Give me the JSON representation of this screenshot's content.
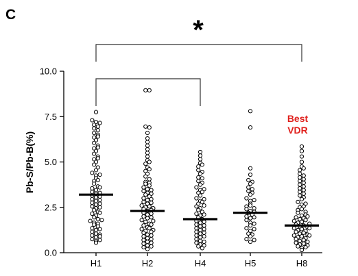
{
  "panel_label": "C",
  "significance": "*",
  "annotation": {
    "line1": "Best",
    "line2": "VDR",
    "color": "#e0201c"
  },
  "chart_data": {
    "type": "scatter",
    "subtype": "dot-plot",
    "ylabel": "Pb-S/Pb-B(%)",
    "xlabel": "",
    "ylim": [
      0,
      10
    ],
    "yticks": [
      "0.0",
      "2.5",
      "5.0",
      "7.5",
      "10.0"
    ],
    "categories": [
      "H1",
      "H2",
      "H4",
      "H5",
      "H8"
    ],
    "medians": [
      3.2,
      2.3,
      1.85,
      2.2,
      1.5
    ],
    "groups": [
      {
        "name": "H1",
        "values": [
          7.75,
          7.3,
          7.2,
          7.15,
          7.05,
          6.95,
          6.85,
          6.75,
          6.6,
          6.5,
          6.35,
          6.2,
          6.05,
          5.9,
          5.75,
          5.6,
          5.45,
          5.3,
          5.15,
          5.0,
          4.85,
          4.7,
          4.55,
          4.4,
          4.25,
          4.1,
          3.95,
          3.8,
          3.65,
          3.55,
          3.45,
          3.35,
          3.25,
          3.15,
          3.05,
          2.95,
          2.85,
          2.75,
          2.65,
          2.55,
          2.45,
          2.35,
          2.25,
          2.15,
          2.05,
          1.95,
          1.85,
          1.75,
          1.65,
          1.55,
          1.45,
          1.35,
          1.25,
          1.15,
          1.05,
          0.95,
          0.85,
          0.75,
          0.65,
          0.55,
          3.3,
          3.1,
          2.9,
          2.7,
          2.5,
          4.0,
          4.3,
          1.6,
          1.3,
          1.0,
          6.4,
          5.8,
          5.2,
          3.6,
          2.2,
          1.8,
          0.9,
          0.7
        ]
      },
      {
        "name": "H2",
        "values": [
          8.95,
          8.95,
          6.95,
          6.9,
          6.6,
          6.3,
          6.1,
          5.9,
          5.7,
          5.5,
          5.3,
          5.1,
          4.9,
          4.7,
          4.5,
          4.35,
          4.2,
          4.05,
          3.9,
          3.8,
          3.7,
          3.6,
          3.5,
          3.4,
          3.3,
          3.2,
          3.1,
          3.0,
          2.9,
          2.8,
          2.7,
          2.6,
          2.5,
          2.4,
          2.3,
          2.2,
          2.1,
          2.0,
          1.9,
          1.8,
          1.7,
          1.6,
          1.5,
          1.4,
          1.3,
          1.2,
          1.1,
          1.0,
          0.9,
          0.8,
          0.7,
          0.6,
          0.5,
          0.4,
          0.3,
          0.2,
          3.85,
          3.45,
          3.25,
          2.95,
          2.75,
          2.55,
          2.35,
          2.15,
          1.95,
          1.75,
          1.55,
          1.35,
          1.15,
          0.95,
          0.75,
          0.55,
          4.6,
          5.0,
          2.45,
          1.25,
          0.35
        ]
      },
      {
        "name": "H4",
        "values": [
          5.55,
          5.35,
          5.15,
          4.95,
          4.75,
          4.55,
          4.35,
          4.15,
          3.95,
          3.75,
          3.6,
          3.45,
          3.3,
          3.15,
          3.0,
          2.85,
          2.7,
          2.55,
          2.45,
          2.35,
          2.25,
          2.15,
          2.05,
          1.95,
          1.85,
          1.75,
          1.65,
          1.55,
          1.45,
          1.35,
          1.25,
          1.15,
          1.05,
          0.95,
          0.85,
          0.75,
          0.65,
          0.55,
          0.45,
          0.35,
          0.25,
          4.85,
          4.45,
          3.85,
          3.35,
          2.95,
          2.6,
          2.1,
          1.7,
          1.3,
          0.9,
          0.6,
          0.4,
          1.5,
          1.1,
          2.8,
          3.5,
          4.1
        ]
      },
      {
        "name": "H5",
        "values": [
          7.8,
          6.9,
          4.65,
          4.3,
          4.0,
          3.8,
          3.6,
          3.4,
          3.2,
          3.0,
          2.85,
          2.7,
          2.55,
          2.4,
          2.3,
          2.2,
          2.1,
          2.0,
          1.9,
          1.8,
          1.65,
          1.5,
          1.35,
          1.2,
          1.05,
          0.9,
          0.75,
          0.6,
          3.9,
          3.5,
          2.9,
          2.6,
          2.25,
          1.95,
          1.6,
          1.3,
          1.0,
          0.7,
          3.3,
          2.45
        ]
      },
      {
        "name": "H8",
        "values": [
          5.85,
          5.6,
          5.3,
          5.0,
          4.75,
          4.55,
          4.35,
          4.15,
          3.95,
          3.75,
          3.55,
          3.35,
          3.15,
          2.95,
          2.8,
          2.65,
          2.5,
          2.35,
          2.2,
          2.05,
          1.95,
          1.85,
          1.75,
          1.65,
          1.55,
          1.45,
          1.35,
          1.25,
          1.15,
          1.05,
          0.95,
          0.85,
          0.75,
          0.65,
          0.55,
          0.45,
          0.35,
          0.25,
          0.15,
          4.65,
          4.25,
          3.85,
          3.45,
          3.05,
          2.7,
          2.4,
          2.1,
          1.9,
          1.7,
          1.5,
          1.3,
          1.1,
          0.9,
          0.7,
          0.5,
          0.3,
          2.55,
          2.25,
          1.8,
          1.4,
          1.0,
          0.6,
          0.4,
          1.6,
          1.2,
          0.8,
          2.0,
          3.25,
          3.65,
          4.05,
          1.35,
          0.95
        ]
      }
    ],
    "brackets": [
      {
        "from": "H1",
        "to": "H8",
        "level": "outer"
      },
      {
        "from": "H1",
        "to": "H4",
        "level": "inner"
      }
    ],
    "grid": false,
    "legend": "none"
  }
}
